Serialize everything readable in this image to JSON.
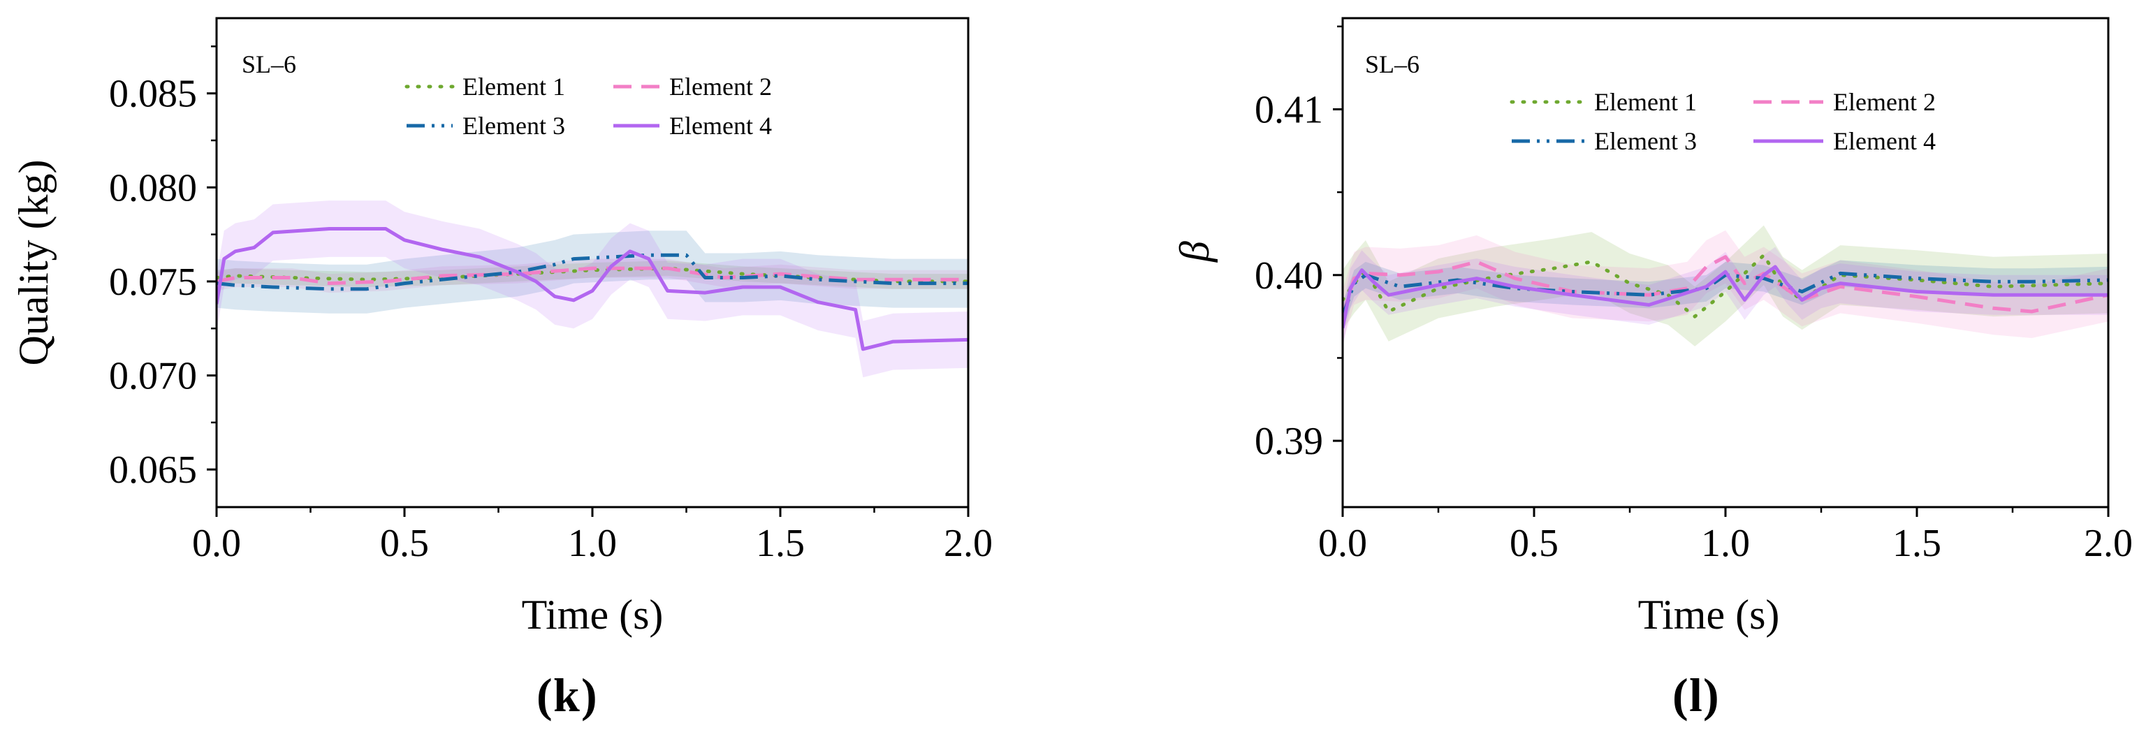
{
  "colors": {
    "element_1": "#6ea82f",
    "element_2": "#f27fc6",
    "element_3": "#1769a7",
    "element_4": "#b266f0",
    "axis": "#000000"
  },
  "chart_data": [
    {
      "id": "k",
      "type": "line",
      "panel_label": "k",
      "annotation": "SL–6",
      "xlabel": "Time (s)",
      "ylabel": "Quality (kg)",
      "xlim": [
        0,
        2
      ],
      "ylim": [
        0.063,
        0.089
      ],
      "xticks": [
        0,
        0.5,
        1,
        1.5,
        2
      ],
      "xtick_labels": [
        "0.0",
        "0.5",
        "1.0",
        "1.5",
        "2.0"
      ],
      "yticks": [
        0.065,
        0.07,
        0.075,
        0.08,
        0.085
      ],
      "ytick_labels": [
        "0.065",
        "0.070",
        "0.075",
        "0.080",
        "0.085"
      ],
      "legend": [
        "Element 1",
        "Element 2",
        "Element 3",
        "Element 4"
      ],
      "series": [
        {
          "name": "Element 1",
          "color_key": "element_1",
          "dash": "dotted",
          "x": [
            0,
            0.05,
            0.2,
            0.4,
            0.6,
            0.8,
            1.0,
            1.2,
            1.4,
            1.6,
            1.8,
            2.0
          ],
          "y": [
            0.0752,
            0.0753,
            0.0752,
            0.0751,
            0.0752,
            0.0754,
            0.0756,
            0.0757,
            0.0754,
            0.0752,
            0.075,
            0.075
          ],
          "band": 0.0004
        },
        {
          "name": "Element 2",
          "color_key": "element_2",
          "dash": "dashed",
          "x": [
            0,
            0.05,
            0.2,
            0.3,
            0.45,
            0.6,
            0.8,
            1.0,
            1.2,
            1.35,
            1.5,
            1.7,
            1.85,
            2.0
          ],
          "y": [
            0.075,
            0.0752,
            0.0752,
            0.0749,
            0.075,
            0.0753,
            0.0754,
            0.0757,
            0.0757,
            0.0752,
            0.0754,
            0.0751,
            0.0751,
            0.0751
          ],
          "band": 0.0005
        },
        {
          "name": "Element 3",
          "color_key": "element_3",
          "dash": "dashdot",
          "x": [
            0,
            0.05,
            0.15,
            0.3,
            0.4,
            0.5,
            0.65,
            0.8,
            0.9,
            0.95,
            1.05,
            1.15,
            1.25,
            1.3,
            1.4,
            1.5,
            1.6,
            1.8,
            2.0
          ],
          "y": [
            0.0749,
            0.0748,
            0.0747,
            0.0746,
            0.0746,
            0.0749,
            0.0752,
            0.0755,
            0.0759,
            0.0762,
            0.0763,
            0.0764,
            0.0764,
            0.0752,
            0.0752,
            0.0753,
            0.0751,
            0.0749,
            0.0749
          ],
          "band": 0.0013
        },
        {
          "name": "Element 4",
          "color_key": "element_4",
          "dash": "solid",
          "x": [
            0,
            0.02,
            0.05,
            0.1,
            0.15,
            0.3,
            0.45,
            0.5,
            0.6,
            0.7,
            0.8,
            0.85,
            0.9,
            0.95,
            1.0,
            1.05,
            1.1,
            1.15,
            1.2,
            1.3,
            1.4,
            1.5,
            1.6,
            1.7,
            1.72,
            1.8,
            2.0
          ],
          "y": [
            0.0738,
            0.0762,
            0.0766,
            0.0768,
            0.0776,
            0.0778,
            0.0778,
            0.0772,
            0.0767,
            0.0763,
            0.0755,
            0.075,
            0.0742,
            0.074,
            0.0745,
            0.0758,
            0.0766,
            0.0762,
            0.0745,
            0.0744,
            0.0747,
            0.0747,
            0.0739,
            0.0735,
            0.0714,
            0.0718,
            0.0719
          ],
          "band": 0.0015
        }
      ]
    },
    {
      "id": "l",
      "type": "line",
      "panel_label": "l",
      "annotation": "SL–6",
      "xlabel": "Time (s)",
      "ylabel": "β",
      "xlim": [
        0,
        2
      ],
      "ylim": [
        0.386,
        0.4155
      ],
      "xticks": [
        0,
        0.5,
        1,
        1.5,
        2
      ],
      "xtick_labels": [
        "0.0",
        "0.5",
        "1.0",
        "1.5",
        "2.0"
      ],
      "yticks": [
        0.39,
        0.4,
        0.41
      ],
      "ytick_labels": [
        "0.39",
        "0.40",
        "0.41"
      ],
      "legend": [
        "Element 1",
        "Element 2",
        "Element 3",
        "Element 4"
      ],
      "series": [
        {
          "name": "Element 1",
          "color_key": "element_1",
          "dash": "dotted",
          "x": [
            0,
            0.03,
            0.06,
            0.12,
            0.25,
            0.4,
            0.55,
            0.65,
            0.75,
            0.85,
            0.92,
            1.0,
            1.1,
            1.15,
            1.2,
            1.3,
            1.5,
            1.7,
            2.0
          ],
          "y": [
            0.3985,
            0.3995,
            0.4003,
            0.3978,
            0.3992,
            0.3999,
            0.4004,
            0.4008,
            0.3995,
            0.3988,
            0.3975,
            0.399,
            0.4012,
            0.3993,
            0.3985,
            0.4,
            0.3997,
            0.3993,
            0.3995
          ],
          "band": 0.0018
        },
        {
          "name": "Element 2",
          "color_key": "element_2",
          "dash": "dashed",
          "x": [
            0,
            0.03,
            0.06,
            0.15,
            0.25,
            0.35,
            0.45,
            0.6,
            0.8,
            0.9,
            0.95,
            1.0,
            1.05,
            1.1,
            1.2,
            1.3,
            1.5,
            1.7,
            1.8,
            2.0
          ],
          "y": [
            0.3975,
            0.3998,
            0.4001,
            0.4,
            0.4002,
            0.4008,
            0.3998,
            0.399,
            0.3988,
            0.3992,
            0.4005,
            0.4011,
            0.3995,
            0.4001,
            0.3985,
            0.3993,
            0.3987,
            0.398,
            0.3978,
            0.3988
          ],
          "band": 0.0016
        },
        {
          "name": "Element 3",
          "color_key": "element_3",
          "dash": "dashdot",
          "x": [
            0,
            0.03,
            0.06,
            0.15,
            0.3,
            0.45,
            0.6,
            0.8,
            0.95,
            1.0,
            1.1,
            1.2,
            1.3,
            1.5,
            1.7,
            1.8,
            2.0
          ],
          "y": [
            0.3975,
            0.3995,
            0.4,
            0.3993,
            0.3997,
            0.3992,
            0.399,
            0.3988,
            0.3992,
            0.4,
            0.3998,
            0.399,
            0.4001,
            0.3998,
            0.3996,
            0.3996,
            0.3997
          ],
          "band": 0.0008
        },
        {
          "name": "Element 4",
          "color_key": "element_4",
          "dash": "solid",
          "x": [
            0,
            0.02,
            0.05,
            0.08,
            0.12,
            0.25,
            0.35,
            0.45,
            0.6,
            0.8,
            0.95,
            1.0,
            1.05,
            1.1,
            1.13,
            1.16,
            1.2,
            1.25,
            1.3,
            1.5,
            1.7,
            1.8,
            2.0
          ],
          "y": [
            0.3968,
            0.3992,
            0.4003,
            0.3996,
            0.3988,
            0.3994,
            0.3998,
            0.3993,
            0.3988,
            0.3982,
            0.3993,
            0.4002,
            0.3985,
            0.4,
            0.4005,
            0.3995,
            0.3985,
            0.3992,
            0.3995,
            0.399,
            0.3988,
            0.3988,
            0.3988
          ],
          "band": 0.0012
        }
      ]
    }
  ]
}
